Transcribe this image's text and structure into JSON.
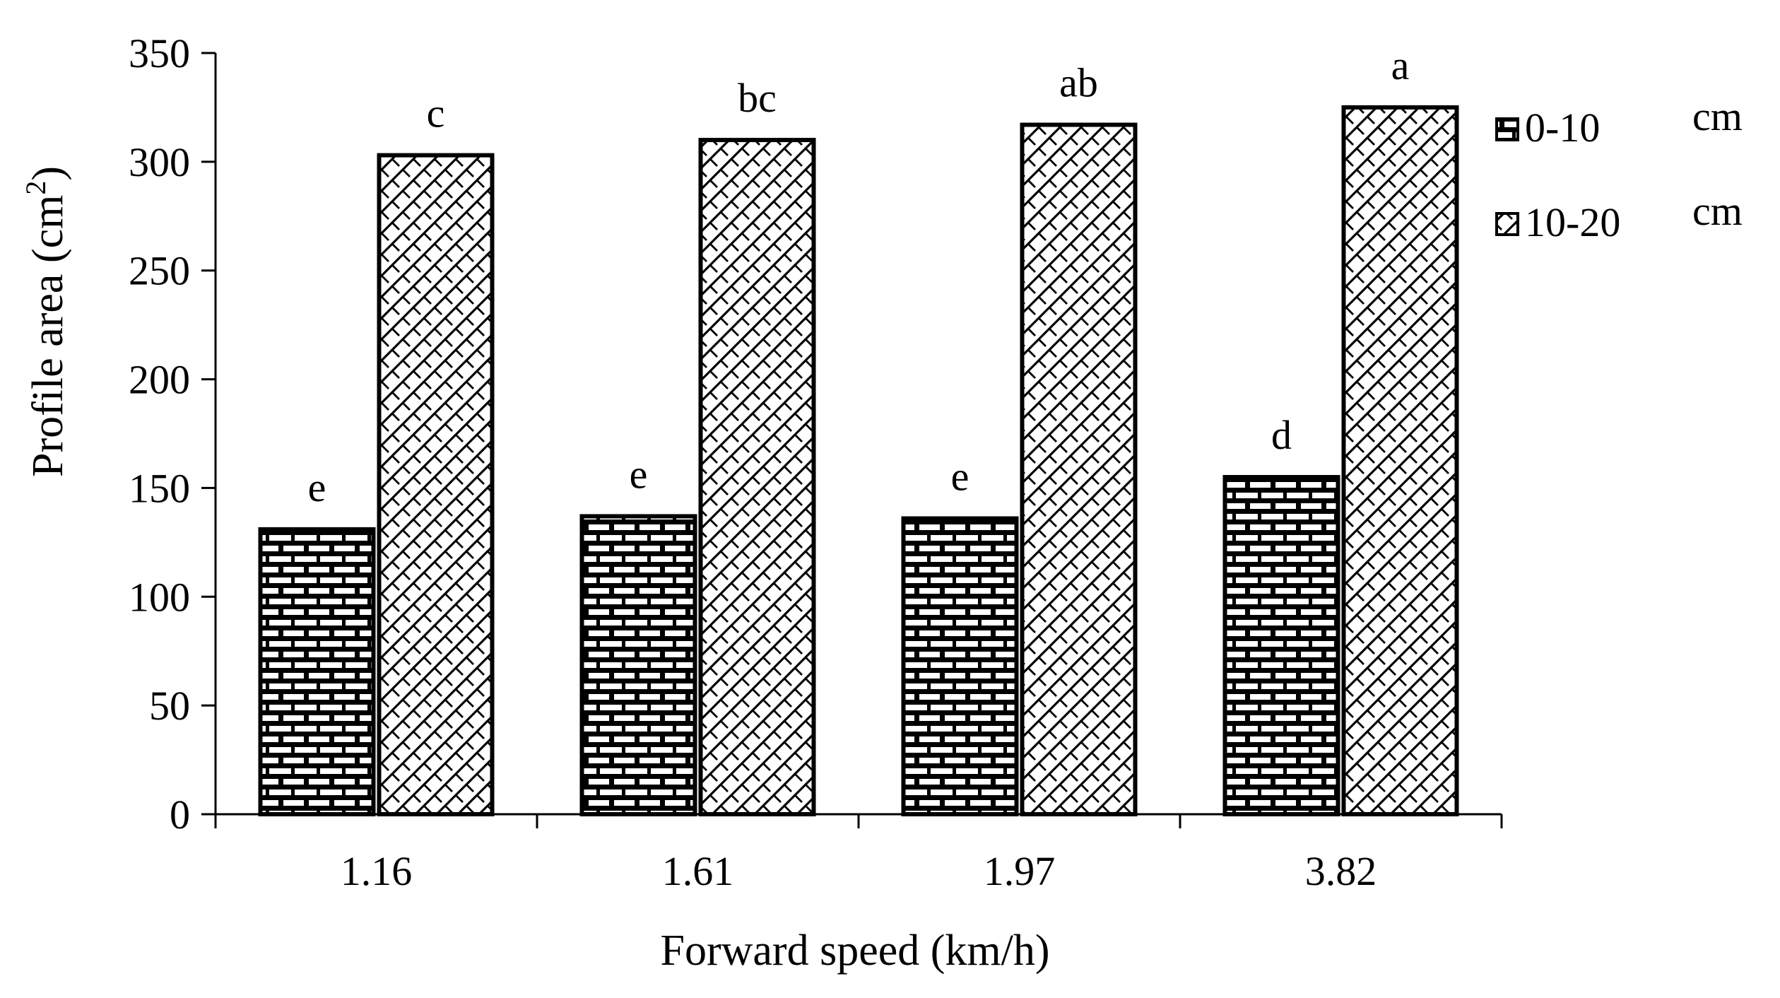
{
  "chart_data": {
    "type": "bar",
    "title": "",
    "xlabel": "Forward speed (km/h)",
    "ylabel": "Profile area (cm",
    "ylabel_superscript": "2",
    "ylabel_close": ")",
    "ylim": [
      0,
      350
    ],
    "yticks": [
      0,
      50,
      100,
      150,
      200,
      250,
      300,
      350
    ],
    "categories": [
      "1.16",
      "1.61",
      "1.97",
      "3.82"
    ],
    "series": [
      {
        "name": "0-10",
        "unit": "cm",
        "pattern": "brick",
        "values": [
          131,
          137,
          136,
          155
        ],
        "labels": [
          "e",
          "e",
          "e",
          "d"
        ]
      },
      {
        "name": "10-20",
        "unit": "cm",
        "pattern": "diagonal-weave",
        "values": [
          303,
          310,
          317,
          325
        ],
        "labels": [
          "c",
          "bc",
          "ab",
          "a"
        ]
      }
    ],
    "legend_position": "right",
    "grid": false
  },
  "colors": {
    "background": "#ffffff",
    "bar_fill": "#ffffff",
    "bar_stroke": "#000000",
    "axis": "#000000"
  }
}
